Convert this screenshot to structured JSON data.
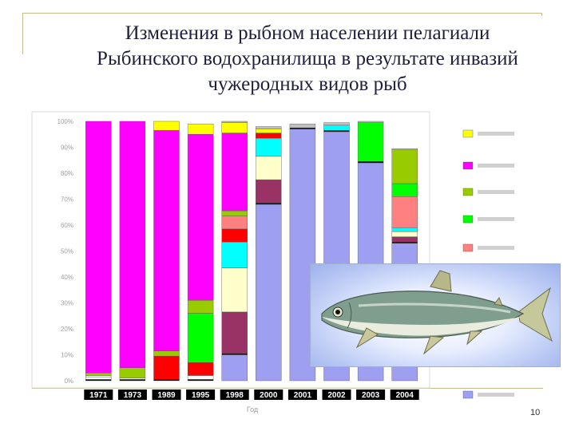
{
  "slide": {
    "title_lines": [
      "Изменения в рыбном населении пелагиали",
      "Рыбинского водохранилища в результате инвазий",
      "чужеродных видов рыб"
    ],
    "page_number": "10",
    "x_axis_label": "Год"
  },
  "image": {
    "description_icon": "fish-icon"
  },
  "chart_data": {
    "type": "bar",
    "stacked": true,
    "percent": true,
    "title": "",
    "xlabel": "Год",
    "ylabel": "",
    "ylim": [
      0,
      100
    ],
    "yticks": [
      "0%",
      "10%",
      "20%",
      "30%",
      "40%",
      "50%",
      "60%",
      "70%",
      "80%",
      "90%",
      "100%"
    ],
    "categories": [
      "1971",
      "1973",
      "1989",
      "1995",
      "1998",
      "2000",
      "2001",
      "2002",
      "2003",
      "2004"
    ],
    "legend_position": "right",
    "series": [
      {
        "name": "",
        "color": "#9f9ff2",
        "values": [
          0,
          0,
          0,
          0,
          10,
          68,
          97,
          96,
          84,
          53
        ]
      },
      {
        "name": "",
        "color": "#000000",
        "values": [
          0.5,
          0.5,
          0.5,
          0.5,
          0.5,
          0.5,
          0.5,
          0.5,
          0.5,
          0.5
        ]
      },
      {
        "name": "",
        "color": "#ffffff",
        "values": [
          1,
          0.5,
          0,
          1.5,
          0,
          0,
          0,
          0,
          0,
          0
        ]
      },
      {
        "name": "",
        "color": "#ff0000",
        "values": [
          0,
          0,
          9,
          5,
          0,
          0,
          0,
          0,
          0,
          0
        ]
      },
      {
        "name": "",
        "color": "#993366",
        "values": [
          0,
          0,
          0,
          0,
          16,
          9,
          0,
          0,
          0,
          2
        ]
      },
      {
        "name": "",
        "color": "#ffffcc",
        "values": [
          0.5,
          0,
          0,
          0,
          17,
          9,
          0,
          0,
          0,
          2
        ]
      },
      {
        "name": "",
        "color": "#00ffff",
        "values": [
          0,
          0,
          0,
          0,
          10,
          7,
          0,
          2,
          0,
          1.5
        ]
      },
      {
        "name": "",
        "color": "#ff0000",
        "values": [
          0,
          0,
          0,
          0,
          5,
          2,
          0,
          0,
          0,
          0
        ]
      },
      {
        "name": "",
        "color": "#ff8080",
        "values": [
          0,
          0,
          0,
          0,
          5,
          0,
          0,
          0,
          0,
          12
        ]
      },
      {
        "name": "",
        "color": "#00ff00",
        "values": [
          0,
          0,
          0,
          19,
          0,
          0,
          0,
          0,
          15,
          5
        ]
      },
      {
        "name": "",
        "color": "#99cc00",
        "values": [
          1,
          4,
          2,
          5,
          2,
          0,
          0,
          0,
          0,
          13
        ]
      },
      {
        "name": "",
        "color": "#ff00ff",
        "values": [
          97,
          95,
          85,
          64,
          30,
          0,
          0,
          0,
          0,
          0
        ]
      },
      {
        "name": "",
        "color": "#ffff00",
        "values": [
          0,
          0,
          3.5,
          4,
          4,
          1.5,
          0,
          0,
          0,
          0
        ]
      },
      {
        "name": "",
        "color": "#c0c0c0",
        "values": [
          0,
          0,
          0,
          0,
          0.5,
          1,
          1.5,
          1,
          0.5,
          0.5
        ]
      }
    ],
    "legend_colors": [
      "#ffff00",
      "#ff00ff",
      "#99cc00",
      "#00ff00",
      "#ff8080",
      "#9f9ff2"
    ]
  }
}
